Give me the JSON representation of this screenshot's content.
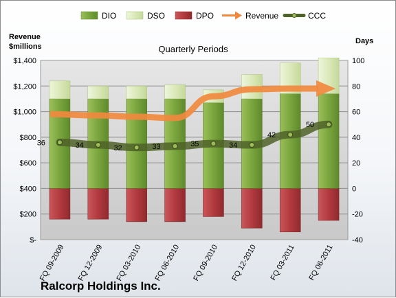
{
  "chart_data": {
    "type": "bar",
    "title": "Ralcorp Holdings Inc.",
    "subtitle": "Quarterly Periods",
    "left_axis_title": [
      "Revenue",
      "$millions"
    ],
    "right_axis_title": "Days",
    "categories": [
      "FQ 09-2009",
      "FQ 12-2009",
      "FQ 03-2010",
      "FQ 06-2010",
      "FQ 09-2010",
      "FQ 12-2010",
      "FQ 03-2011",
      "FQ 06-2011"
    ],
    "left_ylim": [
      0,
      1400
    ],
    "left_ticks": [
      0,
      200,
      400,
      600,
      800,
      1000,
      1200,
      1400
    ],
    "left_tick_labels": [
      "$-",
      "$200",
      "$400",
      "$600",
      "$800",
      "$1,000",
      "$1,200",
      "$1,400"
    ],
    "right_ylim": [
      -40,
      100
    ],
    "right_ticks": [
      -40,
      -20,
      0,
      20,
      40,
      60,
      80,
      100
    ],
    "right_tick_labels": [
      "-40",
      "-20",
      "0",
      "20",
      "40",
      "60",
      "80",
      "100"
    ],
    "grid": true,
    "legend_position": "top",
    "series": [
      {
        "name": "DIO",
        "kind": "stacked-bar",
        "axis": "right",
        "color": "#77a33c",
        "values": [
          70,
          70,
          70,
          70,
          67,
          70,
          74,
          74
        ]
      },
      {
        "name": "DSO",
        "kind": "stacked-bar",
        "axis": "right",
        "color": "#d8e8b4",
        "values": [
          14,
          10,
          10,
          11,
          10,
          19,
          24,
          28
        ]
      },
      {
        "name": "DPO",
        "kind": "bar-below-zero",
        "axis": "right",
        "color": "#b23a3e",
        "values": [
          -24,
          -24,
          -26,
          -26,
          -22,
          -31,
          -34,
          -25
        ]
      },
      {
        "name": "Revenue",
        "kind": "arrow-line",
        "axis": "left",
        "color": "#f0893e",
        "values": [
          980,
          970,
          960,
          950,
          1120,
          1175,
          1180,
          1180
        ]
      },
      {
        "name": "CCC",
        "kind": "line-markers",
        "axis": "right",
        "color": "#4f6228",
        "values": [
          36,
          34,
          32,
          33,
          35,
          34,
          42,
          50
        ]
      }
    ]
  }
}
